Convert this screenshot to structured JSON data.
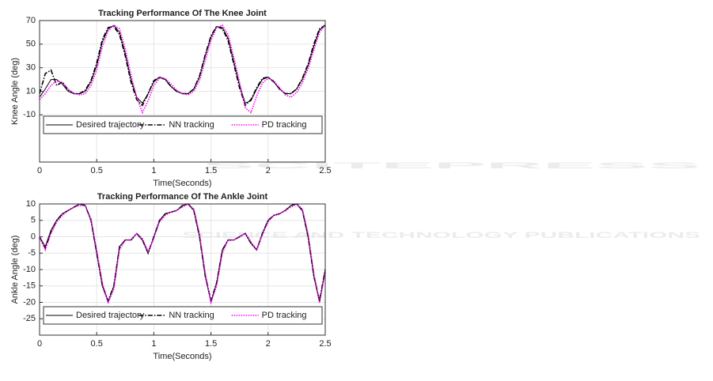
{
  "watermark": {
    "title": "SCITEPRESS",
    "subtitle": "SCIENCE AND TECHNOLOGY PUBLICATIONS"
  },
  "chart_data": [
    {
      "type": "line",
      "title": "Tracking Performance Of The Knee Joint",
      "xlabel": "Time(Seconds)",
      "ylabel": "Knee Angle (deg)",
      "xlim": [
        0,
        2.5
      ],
      "xticks": [
        0,
        0.5,
        1,
        1.5,
        2,
        2.5
      ],
      "ylim": [
        -50,
        70
      ],
      "yticks": [
        -10,
        10,
        30,
        50,
        70
      ],
      "grid": true,
      "legend": "lower",
      "x": [
        0,
        0.05,
        0.1,
        0.15,
        0.2,
        0.25,
        0.3,
        0.35,
        0.4,
        0.45,
        0.5,
        0.55,
        0.6,
        0.65,
        0.7,
        0.75,
        0.8,
        0.85,
        0.9,
        0.95,
        1,
        1.05,
        1.1,
        1.15,
        1.2,
        1.25,
        1.3,
        1.35,
        1.4,
        1.45,
        1.5,
        1.55,
        1.6,
        1.65,
        1.7,
        1.75,
        1.8,
        1.85,
        1.9,
        1.95,
        2,
        2.05,
        2.1,
        2.15,
        2.2,
        2.25,
        2.3,
        2.35,
        2.4,
        2.45,
        2.5
      ],
      "series": [
        {
          "name": "Desired trajectory",
          "color": "#000000",
          "style": "solid",
          "values": [
            5,
            12,
            20,
            20,
            16,
            10,
            8,
            8,
            10,
            18,
            32,
            52,
            63,
            66,
            60,
            42,
            20,
            5,
            0,
            8,
            18,
            22,
            20,
            14,
            10,
            8,
            8,
            12,
            22,
            40,
            56,
            65,
            64,
            55,
            35,
            15,
            0,
            2,
            12,
            20,
            22,
            18,
            12,
            8,
            8,
            12,
            20,
            32,
            48,
            62,
            66
          ]
        },
        {
          "name": "NN tracking",
          "color": "#000000",
          "style": "dashdot",
          "values": [
            8,
            25,
            28,
            15,
            18,
            11,
            8,
            8,
            11,
            19,
            34,
            54,
            64,
            65,
            58,
            40,
            18,
            3,
            -2,
            8,
            19,
            22,
            20,
            14,
            10,
            8,
            8,
            12,
            23,
            41,
            57,
            65,
            63,
            53,
            33,
            13,
            -2,
            3,
            13,
            21,
            22,
            18,
            12,
            8,
            8,
            12,
            21,
            33,
            50,
            63,
            66
          ]
        },
        {
          "name": "PD tracking",
          "color": "#ff00ff",
          "style": "dotted",
          "values": [
            3,
            8,
            15,
            19,
            17,
            12,
            8,
            7,
            8,
            15,
            28,
            48,
            61,
            66,
            63,
            46,
            24,
            5,
            -8,
            2,
            15,
            21,
            21,
            16,
            11,
            8,
            7,
            10,
            19,
            36,
            53,
            64,
            66,
            58,
            39,
            18,
            -4,
            -8,
            6,
            17,
            21,
            19,
            13,
            7,
            5,
            9,
            17,
            29,
            45,
            60,
            66
          ]
        }
      ]
    },
    {
      "type": "line",
      "title": "Tracking Performance Of The Ankle Joint",
      "xlabel": "Time(Seconds)",
      "ylabel": "Ankle Angle (deg)",
      "xlim": [
        0,
        2.5
      ],
      "xticks": [
        0,
        0.5,
        1,
        1.5,
        2,
        2.5
      ],
      "ylim": [
        -30,
        10
      ],
      "yticks": [
        -25,
        -20,
        -15,
        -10,
        -5,
        0,
        5,
        10
      ],
      "grid": true,
      "legend": "lower",
      "x": [
        0,
        0.05,
        0.1,
        0.15,
        0.2,
        0.25,
        0.3,
        0.35,
        0.4,
        0.45,
        0.5,
        0.55,
        0.6,
        0.65,
        0.7,
        0.75,
        0.8,
        0.85,
        0.9,
        0.95,
        1,
        1.05,
        1.1,
        1.15,
        1.2,
        1.25,
        1.3,
        1.35,
        1.4,
        1.45,
        1.5,
        1.55,
        1.6,
        1.65,
        1.7,
        1.75,
        1.8,
        1.85,
        1.9,
        1.95,
        2,
        2.05,
        2.1,
        2.15,
        2.2,
        2.25,
        2.3,
        2.35,
        2.4,
        2.45,
        2.5
      ],
      "series": [
        {
          "name": "Desired trajectory",
          "color": "#000000",
          "style": "solid",
          "values": [
            0,
            -3,
            2,
            5,
            7,
            8,
            9,
            10,
            9.5,
            5,
            -5,
            -15,
            -20,
            -15,
            -3,
            -1,
            -1,
            1,
            -1,
            -5,
            0,
            5,
            7,
            7.5,
            8,
            9.5,
            10,
            8,
            0,
            -12,
            -20,
            -14,
            -4,
            -1,
            -1,
            0,
            1,
            -2,
            -4,
            1,
            5,
            6.5,
            7,
            8,
            9.5,
            10,
            8,
            0,
            -12,
            -20,
            -10
          ]
        },
        {
          "name": "NN tracking",
          "color": "#000000",
          "style": "dashdot",
          "values": [
            0,
            -3.5,
            1.5,
            5,
            7,
            8,
            9,
            10,
            9.5,
            5,
            -5,
            -15,
            -19.5,
            -15,
            -3,
            -1,
            -1,
            1,
            -1,
            -5,
            0,
            5,
            7,
            7.5,
            8,
            9.5,
            10,
            8,
            0,
            -12,
            -19.5,
            -14,
            -4,
            -1,
            -1,
            0,
            1,
            -2,
            -4,
            1,
            5,
            6.5,
            7,
            8,
            9.5,
            10,
            8,
            0,
            -12,
            -19.5,
            -10
          ]
        },
        {
          "name": "PD tracking",
          "color": "#ff00ff",
          "style": "dotted",
          "values": [
            0,
            -4,
            1,
            4.5,
            6.5,
            8,
            9,
            9.5,
            9.5,
            5.5,
            -4,
            -14,
            -20,
            -16,
            -4,
            -1,
            -1,
            1,
            -0.5,
            -4.5,
            -0.5,
            4.5,
            6.5,
            7.5,
            8,
            9,
            10,
            8.5,
            1,
            -11,
            -20,
            -15,
            -5,
            -1,
            -1,
            0,
            1,
            -1.5,
            -4,
            0.5,
            4.5,
            6.5,
            7,
            8,
            9,
            10,
            8.5,
            1,
            -11,
            -20,
            -11
          ]
        }
      ]
    }
  ]
}
